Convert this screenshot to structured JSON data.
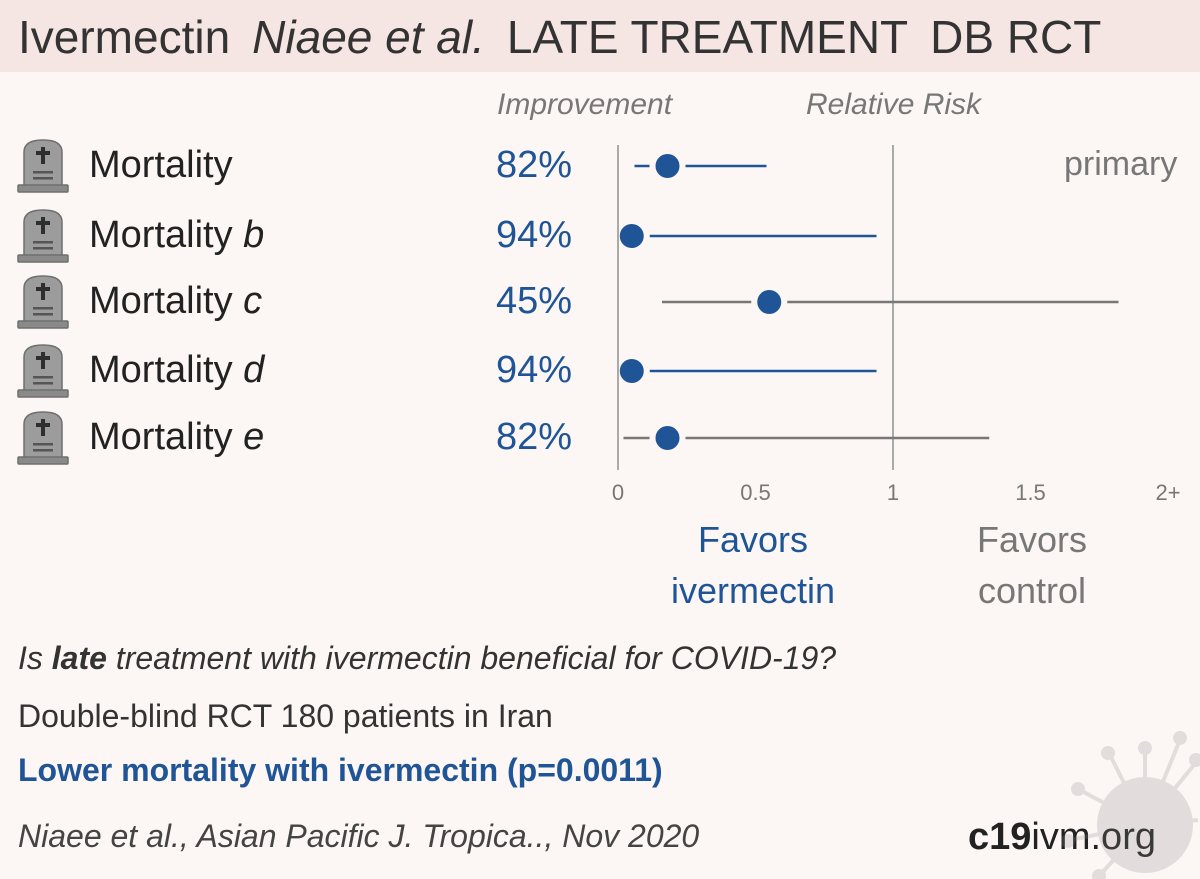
{
  "title": {
    "drug": "Ivermectin",
    "authors": "Niaee et al.",
    "stage": "LATE TREATMENT",
    "design": "DB RCT"
  },
  "columns": {
    "improvement": "Improvement",
    "relative_risk": "Relative Risk"
  },
  "rows": [
    {
      "label": "Mortality",
      "suffix": "",
      "improvement": "82%",
      "icon": "tombstone-icon"
    },
    {
      "label": "Mortality",
      "suffix": "b",
      "improvement": "94%",
      "icon": "tombstone-icon"
    },
    {
      "label": "Mortality",
      "suffix": "c",
      "improvement": "45%",
      "icon": "tombstone-icon"
    },
    {
      "label": "Mortality",
      "suffix": "d",
      "improvement": "94%",
      "icon": "tombstone-icon"
    },
    {
      "label": "Mortality",
      "suffix": "e",
      "improvement": "82%",
      "icon": "tombstone-icon"
    }
  ],
  "primary_tag": "primary",
  "favors": {
    "left_line1": "Favors",
    "left_line2": "ivermectin",
    "right_line1": "Favors",
    "right_line2": "control"
  },
  "question": {
    "pre": "Is ",
    "bold": "late",
    "post": " treatment with ivermectin beneficial for COVID-19?"
  },
  "design_text": "Double-blind RCT 180 patients in Iran",
  "conclusion": "Lower mortality with ivermectin (p=0.0011)",
  "citation": "Niaee et al., Asian Pacific J. Tropica.., Nov 2020",
  "site": {
    "bold": "c19",
    "rest": "ivm.org"
  },
  "colors": {
    "favorable": "#1f5596",
    "nonsignificant": "#777777",
    "title_bg": "#f5e6e3",
    "page_bg": "#fcf6f4"
  },
  "chart_data": {
    "type": "forest",
    "x_axis": {
      "min": 0,
      "max": 2,
      "ticks": [
        {
          "value": 0,
          "label": "0"
        },
        {
          "value": 0.5,
          "label": "0.5"
        },
        {
          "value": 1,
          "label": "1"
        },
        {
          "value": 1.5,
          "label": "1.5"
        },
        {
          "value": 2,
          "label": "2+"
        }
      ],
      "reference_lines": [
        0,
        1
      ]
    },
    "series": [
      {
        "label": "Mortality",
        "rr": 0.18,
        "ci_low": 0.06,
        "ci_high": 0.54,
        "significant": true,
        "primary": true
      },
      {
        "label": "Mortality b",
        "rr": 0.05,
        "ci_low": 0.0,
        "ci_high": 0.94,
        "significant": true,
        "primary": false
      },
      {
        "label": "Mortality c",
        "rr": 0.55,
        "ci_low": 0.16,
        "ci_high": 1.82,
        "significant": false,
        "primary": false
      },
      {
        "label": "Mortality d",
        "rr": 0.05,
        "ci_low": 0.0,
        "ci_high": 0.94,
        "significant": true,
        "primary": false
      },
      {
        "label": "Mortality e",
        "rr": 0.18,
        "ci_low": 0.02,
        "ci_high": 1.35,
        "significant": false,
        "primary": false
      }
    ]
  }
}
